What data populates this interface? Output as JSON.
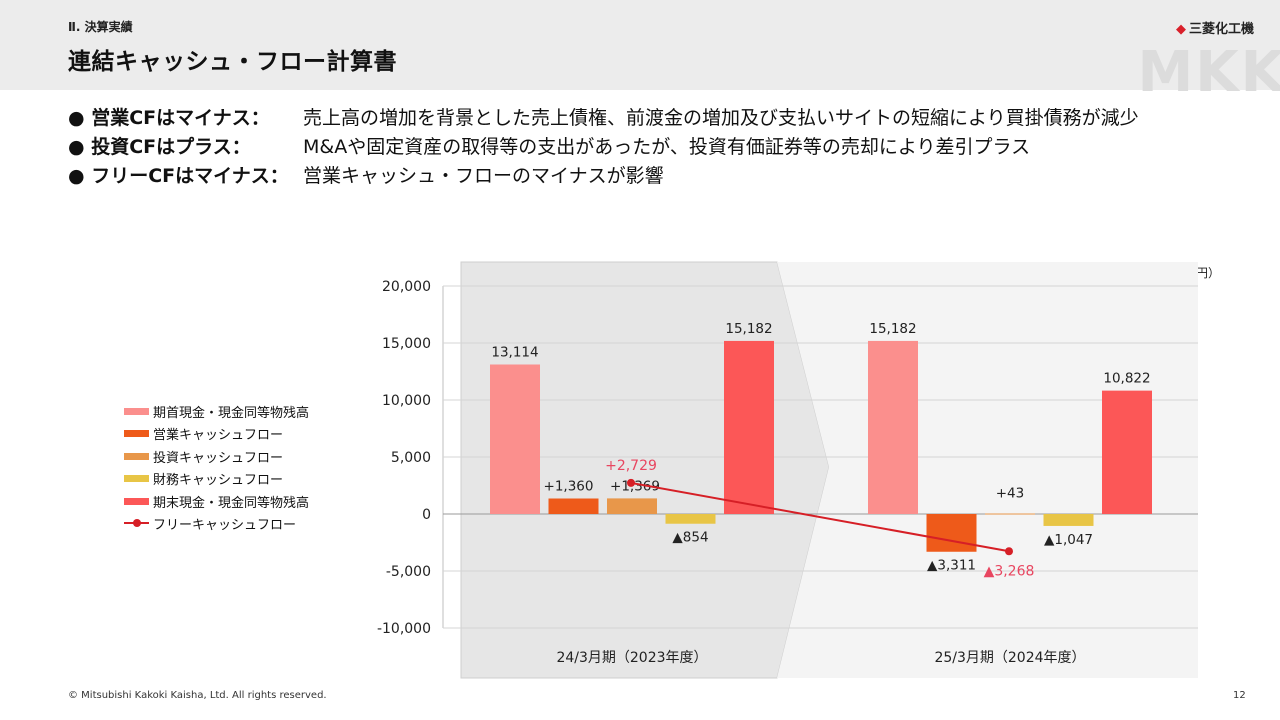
{
  "header": {
    "section": "Ⅱ. 決算実績",
    "title": "連結キャッシュ・フロー計算書",
    "logo_text": "三菱化工機",
    "watermark": "MKK"
  },
  "bullets": [
    {
      "label": "● 営業CFはマイナス：",
      "text": "売上高の増加を背景とした売上債権、前渡金の増加及び支払いサイトの短縮により買掛債務が減少"
    },
    {
      "label": "● 投資CFはプラス：",
      "text": "M&Aや固定資産の取得等の支出があったが、投資有価証券等の売却により差引プラス"
    },
    {
      "label": "● フリーCFはマイナス：",
      "text": "営業キャッシュ・フローのマイナスが影響"
    }
  ],
  "chart_data": {
    "type": "bar",
    "unit": "（単位：百万円）",
    "ylim": [
      -10000,
      20000
    ],
    "yticks": [
      "20,000",
      "15,000",
      "10,000",
      "5,000",
      "0",
      "-5,000",
      "-10,000"
    ],
    "grid": true,
    "legend_position": "left",
    "categories": [
      "24/3月期（2023年度）",
      "25/3月期（2024年度）"
    ],
    "series": [
      {
        "name": "期首現金・現金同等物残高",
        "color": "#fb8f8d",
        "values": [
          13114,
          15182
        ],
        "labels": [
          "13,114",
          "15,182"
        ]
      },
      {
        "name": "営業キャッシュフロー",
        "color": "#ee5a1a",
        "values": [
          1360,
          -3311
        ],
        "labels": [
          "+1,360",
          "▲3,311"
        ]
      },
      {
        "name": "投資キャッシュフロー",
        "color": "#e8974a",
        "values": [
          1369,
          43
        ],
        "labels": [
          "+1,369",
          "+43"
        ]
      },
      {
        "name": "財務キャッシュフロー",
        "color": "#e8c546",
        "values": [
          -854,
          -1047
        ],
        "labels": [
          "▲854",
          "▲1,047"
        ]
      },
      {
        "name": "期末現金・現金同等物残高",
        "color": "#fc5757",
        "values": [
          15182,
          10822
        ],
        "labels": [
          "15,182",
          "10,822"
        ]
      }
    ],
    "line": {
      "name": "フリーキャッシュフロー",
      "color": "#d61f26",
      "label_color": "#e84660",
      "values": [
        2729,
        -3268
      ],
      "labels": [
        "+2,729",
        "▲3,268"
      ]
    }
  },
  "footer": {
    "copyright": "© Mitsubishi Kakoki Kaisha, Ltd. All rights reserved.",
    "page": "12"
  }
}
